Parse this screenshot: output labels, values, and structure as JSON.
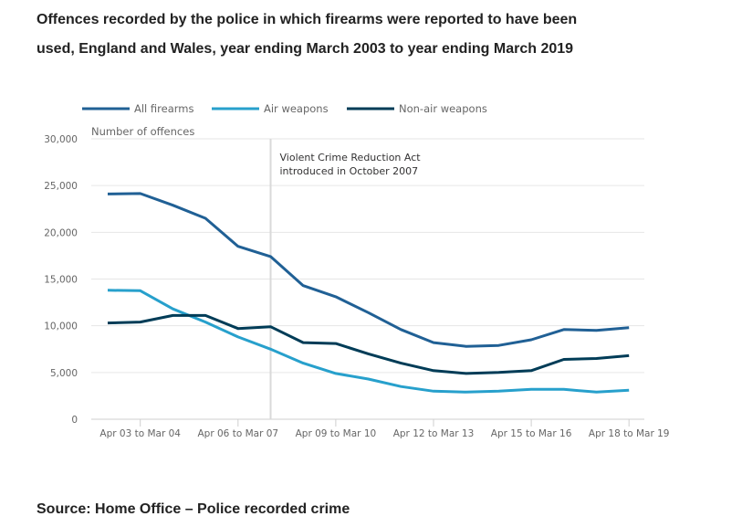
{
  "title": "Offences recorded by the police in which firearms were reported to have been used, England and Wales, year ending March 2003 to year ending March 2019",
  "source": "Source: Home Office – Police recorded crime",
  "chart_data": {
    "type": "line",
    "title": "Offences recorded by the police in which firearms were reported to have been used, England and Wales, year ending March 2003 to year ending March 2019",
    "xlabel": "",
    "ylabel": "Number of offences",
    "ylim": [
      0,
      30000
    ],
    "yticks": [
      0,
      5000,
      10000,
      15000,
      20000,
      25000,
      30000
    ],
    "ytick_labels": [
      "0",
      "5,000",
      "10,000",
      "15,000",
      "20,000",
      "25,000",
      "30,000"
    ],
    "grid": true,
    "legend_position": "top",
    "x": [
      "Apr 02 to Mar 03",
      "Apr 03 to Mar 04",
      "Apr 04 to Mar 05",
      "Apr 05 to Mar 06",
      "Apr 06 to Mar 07",
      "Apr 07 to Mar 08",
      "Apr 08 to Mar 09",
      "Apr 09 to Mar 10",
      "Apr 10 to Mar 11",
      "Apr 11 to Mar 12",
      "Apr 12 to Mar 13",
      "Apr 13 to Mar 14",
      "Apr 14 to Mar 15",
      "Apr 15 to Mar 16",
      "Apr 16 to Mar 17",
      "Apr 17 to Mar 18",
      "Apr 18 to Mar 19"
    ],
    "xtick_labels_shown": [
      "Apr 03 to Mar 04",
      "Apr 06 to Mar 07",
      "Apr 09 to Mar 10",
      "Apr 12 to Mar 13",
      "Apr 15 to Mar 16",
      "Apr 18 to Mar 19"
    ],
    "series": [
      {
        "name": "All firearms",
        "color": "#206095",
        "values": [
          24100,
          24150,
          22900,
          21500,
          18500,
          17400,
          14300,
          13100,
          11400,
          9600,
          8200,
          7800,
          7900,
          8500,
          9600,
          9500,
          9800
        ]
      },
      {
        "name": "Air weapons",
        "color": "#27a0cc",
        "values": [
          13800,
          13750,
          11800,
          10400,
          8800,
          7500,
          6000,
          4900,
          4300,
          3500,
          3000,
          2900,
          3000,
          3200,
          3200,
          2900,
          3100
        ]
      },
      {
        "name": "Non-air weapons",
        "color": "#003c57",
        "values": [
          10300,
          10400,
          11100,
          11100,
          9700,
          9900,
          8200,
          8100,
          7000,
          6000,
          5200,
          4900,
          5000,
          5200,
          6400,
          6500,
          6800
        ]
      }
    ],
    "annotations": [
      {
        "text_line1": "Violent Crime Reduction Act",
        "text_line2": "introduced in October 2007",
        "x_at": "Apr 07 to Mar 08"
      }
    ]
  }
}
